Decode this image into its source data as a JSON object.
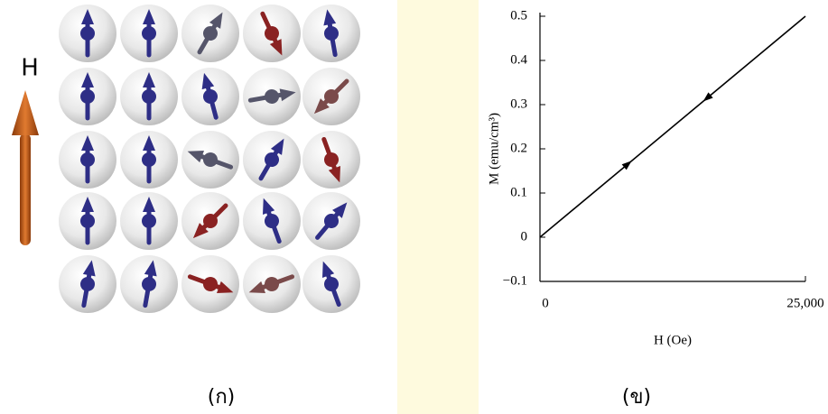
{
  "field_label": "H",
  "panel_labels": [
    "(ก)",
    "(ข)"
  ],
  "chart_data": {
    "type": "line",
    "x_label": "H (Oe)",
    "y_label": "M (emu/cm³)",
    "xlim": [
      0,
      25000
    ],
    "xticks": [
      0,
      {
        "value": 25000,
        "label": "25,000"
      }
    ],
    "ylim": [
      -0.1,
      0.5
    ],
    "yticks": [
      {
        "value": -0.1,
        "label": "−0.1"
      },
      0,
      0.1,
      0.2,
      0.3,
      0.4,
      0.5
    ],
    "x": [
      0,
      25000
    ],
    "series": [
      {
        "color": "#000000",
        "values": [
          0,
          0.5
        ]
      }
    ]
  }
}
